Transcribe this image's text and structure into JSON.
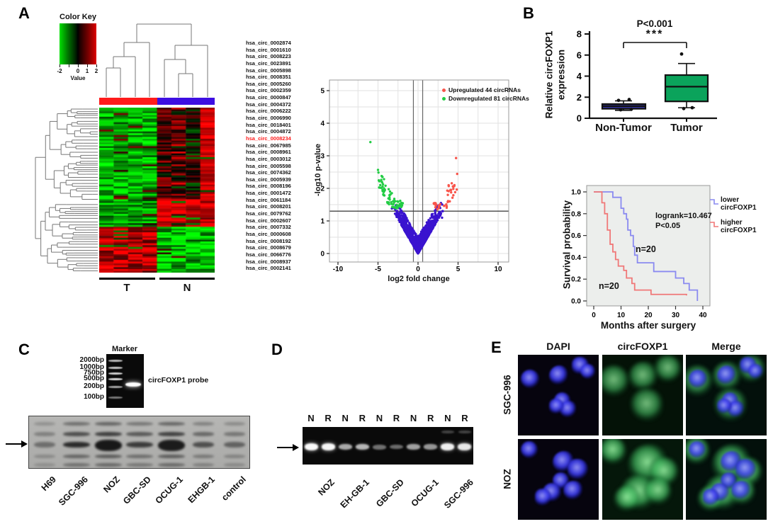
{
  "panels": {
    "a": "A",
    "b": "B",
    "c": "C",
    "d": "D",
    "e": "E"
  },
  "panel_a": {
    "color_key": {
      "title": "Color Key",
      "ticks": [
        "-2",
        "0",
        "1",
        "2"
      ],
      "tick_values": [
        -2,
        0,
        1,
        2
      ],
      "label": "Value"
    },
    "group_bar": {
      "t_color": "#fe1b1b",
      "n_color": "#3d0ee2"
    },
    "t_label": "T",
    "n_label": "N",
    "highlighted": "hsa_circ_0008234",
    "highlight_color": "#fe1b1b",
    "circrnas": [
      "hsa_circ_0002874",
      "hsa_circ_0001610",
      "hsa_circ_0008223",
      "hsa_circ_0023891",
      "hsa_circ_0005898",
      "hsa_circ_0008351",
      "hsa_circ_0005260",
      "hsa_circ_0002359",
      "hsa_circ_0000847",
      "hsa_circ_0004372",
      "hsa_circ_0006222",
      "hsa_circ_0006990",
      "hsa_circ_0018401",
      "hsa_circ_0004872",
      "hsa_circ_0008234",
      "hsa_circ_0067985",
      "hsa_circ_0008961",
      "hsa_circ_0003012",
      "hsa_circ_0005598",
      "hsa_circ_0074362",
      "hsa_circ_0005939",
      "hsa_circ_0008196",
      "hsa_circ_0001472",
      "hsa_circ_0061184",
      "hsa_circ_0008201",
      "hsa_circ_0079762",
      "hsa_circ_0002607",
      "hsa_circ_0007332",
      "hsa_circ_0000608",
      "hsa_circ_0008192",
      "hsa_circ_0008679",
      "hsa_circ_0066776",
      "hsa_circ_0008937",
      "hsa_circ_0002141"
    ]
  },
  "volcano": {
    "ylabel": "-log10 p-value",
    "xlabel": "log2 fold change",
    "yticks": [
      "0",
      "1",
      "2",
      "3",
      "4",
      "5"
    ],
    "xticks": [
      "-10",
      "-5",
      "0",
      "5",
      "10"
    ],
    "legend": [
      {
        "label": "Upregulated 44 circRNAs",
        "color": "#f8544a"
      },
      {
        "label": "Downregulated 81 circRNAs",
        "color": "#22cc44"
      }
    ]
  },
  "boxplot": {
    "ylabel_line1": "Relative circFOXP1",
    "ylabel_line2": "expression",
    "yticks": [
      "0",
      "2",
      "4",
      "6",
      "8"
    ],
    "categories": [
      "Non-Tumor",
      "Tumor"
    ],
    "p_label": "P<0.001",
    "stars": "***"
  },
  "km": {
    "ylabel": "Survival probability",
    "xlabel": "Months after surgery",
    "yticks": [
      "0.0",
      "0.2",
      "0.4",
      "0.6",
      "0.8",
      "1.0"
    ],
    "xticks": [
      "0",
      "10",
      "20",
      "30",
      "40"
    ],
    "legend": [
      {
        "line1": "lower",
        "line2": "circFOXP1",
        "color": "#8a8af0"
      },
      {
        "line1": "higher",
        "line2": "circFOXP1",
        "color": "#f07878"
      }
    ],
    "logrank": "logrank=10.467",
    "p": "P<0.05",
    "n_lower": "n=20",
    "n_higher": "n=20"
  },
  "panel_c": {
    "marker_title": "Marker",
    "ladder": [
      "2000bp",
      "1000bp",
      "750bp",
      "500bp",
      "200bp",
      "100bp"
    ],
    "probe_label": "circFOXP1 probe",
    "lanes": [
      {
        "label": "H69",
        "intensity": 0.42
      },
      {
        "label": "SGC-996",
        "intensity": 0.85
      },
      {
        "label": "NOZ",
        "intensity": 0.97
      },
      {
        "label": "GBC-SD",
        "intensity": 0.75
      },
      {
        "label": "OCUG-1",
        "intensity": 0.95
      },
      {
        "label": "EHGB-1",
        "intensity": 0.62
      },
      {
        "label": "control",
        "intensity": 0.5
      }
    ]
  },
  "panel_d": {
    "lane_headers": [
      "N",
      "R",
      "N",
      "R",
      "N",
      "R",
      "N",
      "R",
      "N",
      "R"
    ],
    "band_intensities": [
      0.97,
      0.95,
      0.55,
      0.62,
      0.25,
      0.22,
      0.5,
      0.45,
      0.92,
      0.88
    ],
    "cell_lines": [
      "NOZ",
      "EH-GB-1",
      "GBC-SD",
      "OCUG-1",
      "SGC-996"
    ]
  },
  "panel_e": {
    "col_headers": [
      "DAPI",
      "circFOXP1",
      "Merge"
    ],
    "row_labels": [
      "SGC-996",
      "NOZ"
    ],
    "rows": [
      {
        "label": "SGC-996",
        "nuclei": [
          [
            15,
            30,
            10
          ],
          [
            50,
            25,
            10
          ],
          [
            77,
            13,
            9
          ],
          [
            86,
            21,
            8
          ],
          [
            55,
            57,
            9
          ],
          [
            62,
            67,
            9
          ],
          [
            48,
            64,
            8
          ]
        ],
        "cells": [
          [
            14,
            32,
            17
          ],
          [
            50,
            26,
            16
          ],
          [
            81,
            17,
            15
          ],
          [
            55,
            62,
            18
          ]
        ]
      },
      {
        "label": "NOZ",
        "nuclei": [
          [
            14,
            13,
            9
          ],
          [
            56,
            28,
            11
          ],
          [
            74,
            37,
            11
          ],
          [
            53,
            52,
            9
          ],
          [
            42,
            66,
            10
          ],
          [
            68,
            63,
            10
          ],
          [
            31,
            72,
            9
          ]
        ],
        "cells": [
          [
            13,
            14,
            15
          ],
          [
            56,
            30,
            21
          ],
          [
            76,
            40,
            16
          ],
          [
            45,
            66,
            19
          ],
          [
            69,
            64,
            15
          ],
          [
            30,
            73,
            14
          ]
        ]
      }
    ]
  },
  "chart_data": [
    {
      "type": "heatmap",
      "name": "circRNA expression heatmap",
      "rows": 90,
      "cols": 8,
      "col_groups": [
        {
          "label": "T",
          "columns": 4,
          "bar_color": "#fe1b1b"
        },
        {
          "label": "N",
          "columns": 4,
          "bar_color": "#3d0ee2"
        }
      ],
      "value_range": [
        -2,
        2
      ],
      "color_scale": {
        "low": "#00ff00",
        "mid": "#000000",
        "high": "#ff0000"
      },
      "color_key": {
        "title": "Color Key",
        "ticks": [
          -2,
          0,
          1,
          2
        ],
        "label": "Value"
      },
      "pattern": "upper ~55% rows: T green / N red; 55-72%: N bright red, T green; lower ~28%: T red / N green",
      "row_labels_shown": 34,
      "highlighted_row": "hsa_circ_0008234"
    },
    {
      "type": "scatter",
      "name": "volcano",
      "xlabel": "log2 fold change",
      "ylabel": "-log10 p-value",
      "xlim": [
        -11,
        11
      ],
      "ylim": [
        0,
        5.3
      ],
      "xticks": [
        -10,
        -5,
        0,
        5,
        10
      ],
      "yticks": [
        0,
        1,
        2,
        3,
        4,
        5
      ],
      "thresholds": {
        "pvalue_line": 1.3,
        "fold_change_lines": [
          -0.58,
          0.58
        ]
      },
      "series": [
        {
          "name": "Upregulated 44 circRNAs",
          "color": "#f8544a",
          "count": 44
        },
        {
          "name": "Downregulated 81 circRNAs",
          "color": "#22cc44",
          "count": 81
        },
        {
          "name": "non-significant",
          "color": "#3a13cf",
          "count": "~1100"
        }
      ],
      "legend_position": "top-right",
      "grid": true
    },
    {
      "type": "box",
      "name": "circFOXP1 expression",
      "ylabel": "Relative circFOXP1 expression",
      "ylim": [
        0,
        8
      ],
      "yticks": [
        0,
        2,
        4,
        6,
        8
      ],
      "categories": [
        "Non-Tumor",
        "Tumor"
      ],
      "boxes": [
        {
          "category": "Non-Tumor",
          "whisker_low": 0.75,
          "q1": 0.9,
          "median": 1.15,
          "q3": 1.35,
          "whisker_high": 1.65,
          "points": [
            1.7,
            1.78,
            0.8,
            0.85
          ],
          "fill": "#34349a"
        },
        {
          "category": "Tumor",
          "whisker_low": 1.0,
          "q1": 1.6,
          "median": 3.0,
          "q3": 4.1,
          "whisker_high": 5.2,
          "points": [
            6.1,
            1.0,
            0.92
          ],
          "fill": "#0ba35b"
        }
      ],
      "significance": {
        "label": "P<0.001",
        "stars": "***"
      }
    },
    {
      "type": "line",
      "name": "kaplan_meier",
      "xlabel": "Months after surgery",
      "ylabel": "Survival probability",
      "xlim": [
        0,
        40
      ],
      "ylim": [
        0,
        1
      ],
      "xticks": [
        0,
        10,
        20,
        30,
        40
      ],
      "yticks": [
        0,
        0.2,
        0.4,
        0.6,
        0.8,
        1.0
      ],
      "annotations": [
        "logrank=10.467",
        "P<0.05"
      ],
      "series": [
        {
          "name": "lower circFOXP1",
          "color": "#8a8af0",
          "n": 20,
          "points": [
            [
              0,
              1
            ],
            [
              7,
              1
            ],
            [
              7,
              0.95
            ],
            [
              10,
              0.95
            ],
            [
              10,
              0.85
            ],
            [
              11,
              0.8
            ],
            [
              12,
              0.75
            ],
            [
              12.5,
              0.65
            ],
            [
              13.5,
              0.6
            ],
            [
              14.5,
              0.5
            ],
            [
              15,
              0.42
            ],
            [
              16,
              0.35
            ],
            [
              22,
              0.35
            ],
            [
              22,
              0.27
            ],
            [
              30,
              0.27
            ],
            [
              30,
              0.21
            ],
            [
              33,
              0.16
            ],
            [
              35,
              0.1
            ],
            [
              38,
              0.05
            ],
            [
              38,
              0
            ]
          ]
        },
        {
          "name": "higher circFOXP1",
          "color": "#f07878",
          "n": 20,
          "points": [
            [
              0,
              1
            ],
            [
              3,
              1
            ],
            [
              3,
              0.9
            ],
            [
              4,
              0.8
            ],
            [
              5,
              0.65
            ],
            [
              6,
              0.52
            ],
            [
              7,
              0.45
            ],
            [
              8,
              0.38
            ],
            [
              9,
              0.32
            ],
            [
              11,
              0.28
            ],
            [
              12,
              0.21
            ],
            [
              14,
              0.16
            ],
            [
              15,
              0.1
            ],
            [
              20,
              0.1
            ],
            [
              21,
              0.06
            ],
            [
              34,
              0.05
            ]
          ]
        }
      ]
    }
  ]
}
